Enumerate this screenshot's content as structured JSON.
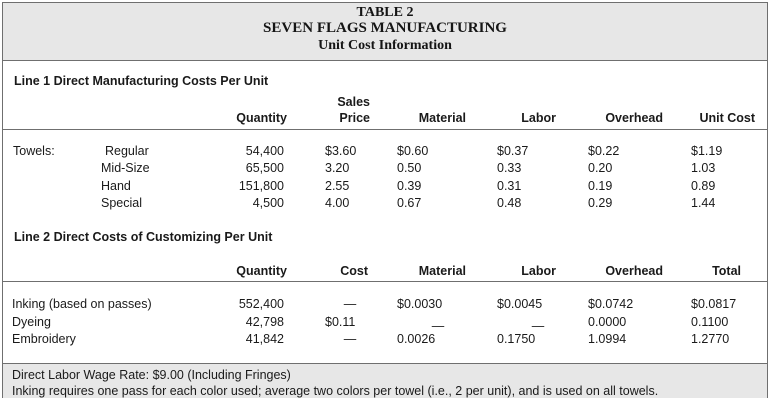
{
  "title": {
    "line1": "TABLE 2",
    "line2": "SEVEN FLAGS MANUFACTURING",
    "line3": "Unit Cost Information"
  },
  "section1": {
    "title": "Line 1 Direct Manufacturing Costs Per Unit",
    "headers": {
      "quantity": "Quantity",
      "sales_top": "Sales",
      "sales_bottom": "Price",
      "material": "Material",
      "labor": "Labor",
      "overhead": "Overhead",
      "unit_cost": "Unit Cost"
    },
    "group_label": "Towels:",
    "rows": [
      {
        "name": "Regular",
        "quantity": "54,400",
        "price": "$3.60",
        "material": "$0.60",
        "labor": "$0.37",
        "overhead": "$0.22",
        "unit_cost": "$1.19"
      },
      {
        "name": "Mid-Size",
        "quantity": "65,500",
        "price": "3.20",
        "material": "0.50",
        "labor": "0.33",
        "overhead": "0.20",
        "unit_cost": "1.03"
      },
      {
        "name": "Hand",
        "quantity": "151,800",
        "price": "2.55",
        "material": "0.39",
        "labor": "0.31",
        "overhead": "0.19",
        "unit_cost": "0.89"
      },
      {
        "name": "Special",
        "quantity": "4,500",
        "price": "4.00",
        "material": "0.67",
        "labor": "0.48",
        "overhead": "0.29",
        "unit_cost": "1.44"
      }
    ]
  },
  "section2": {
    "title": "Line 2 Direct Costs of Customizing Per Unit",
    "headers": {
      "quantity": "Quantity",
      "cost": "Cost",
      "material": "Material",
      "labor": "Labor",
      "overhead": "Overhead",
      "total": "Total"
    },
    "rows": [
      {
        "name": "Inking (based on passes)",
        "quantity": "552,400",
        "cost": "—",
        "material": "$0.0030",
        "labor": "$0.0045",
        "overhead": "$0.0742",
        "total": "$0.0817"
      },
      {
        "name": "Dyeing",
        "quantity": "42,798",
        "cost": "$0.11",
        "material": "—",
        "labor": "—",
        "overhead": "0.0000",
        "total": "0.1100"
      },
      {
        "name": "Embroidery",
        "quantity": "41,842",
        "cost": "—",
        "material": "0.0026",
        "labor": "0.1750",
        "overhead": "1.0994",
        "total": "1.2770"
      }
    ]
  },
  "footer": {
    "line1": "Direct Labor Wage Rate: $9.00 (Including Fringes)",
    "line2": "Inking requires one pass for each color used; average two colors per towel (i.e., 2 per unit), and is used on all towels."
  }
}
